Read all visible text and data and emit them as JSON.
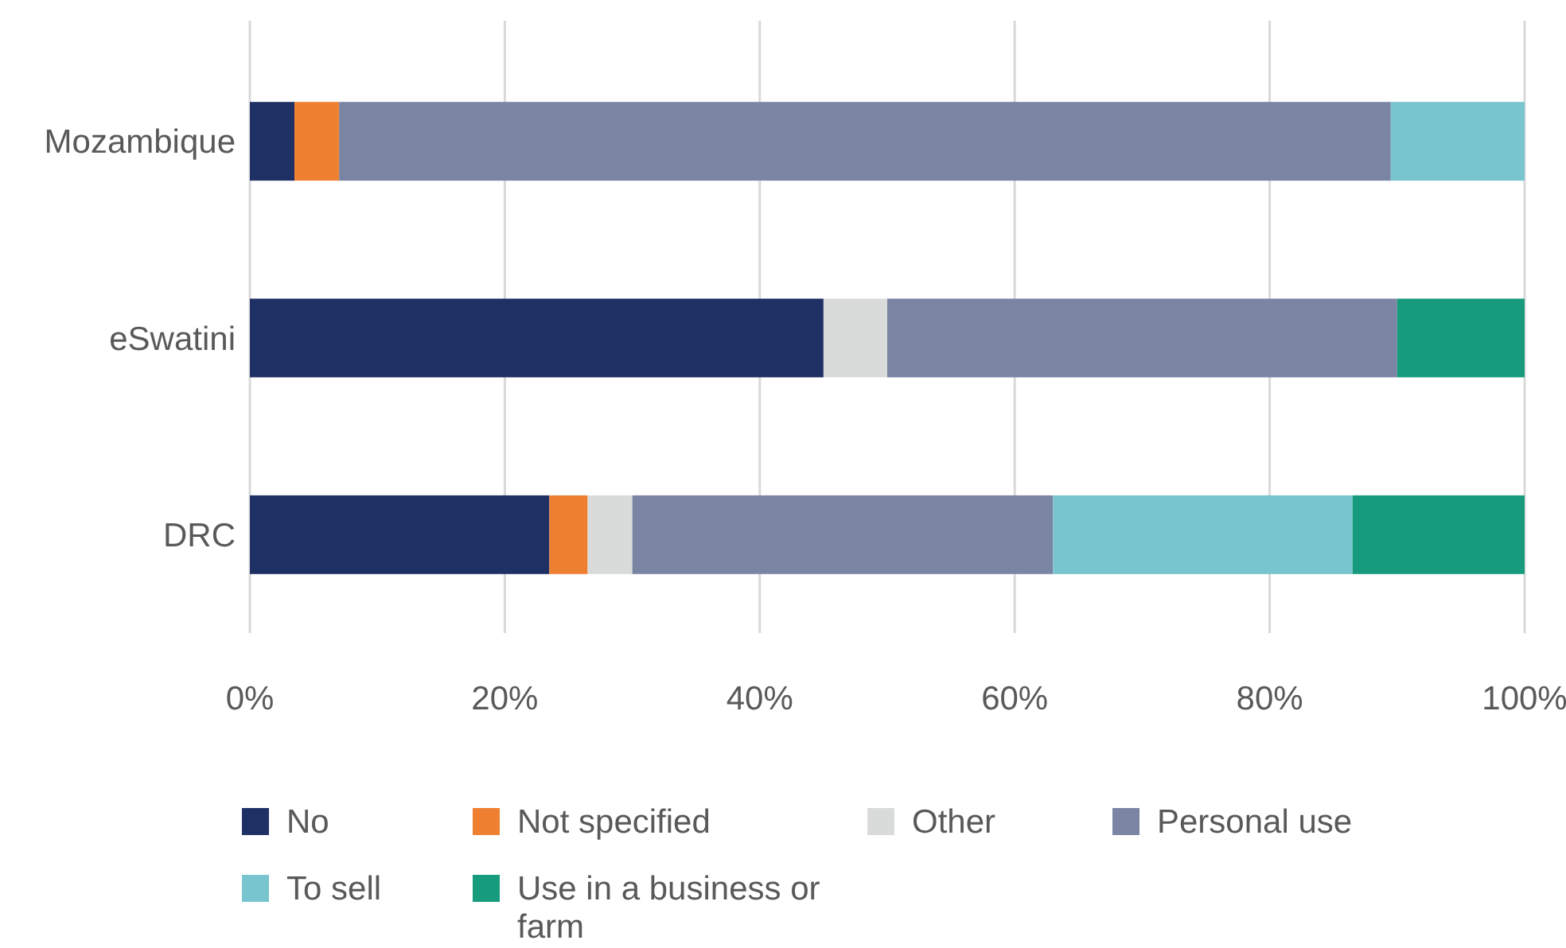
{
  "chart_data": {
    "type": "bar",
    "orientation": "horizontal",
    "stacked": true,
    "categories": [
      "Mozambique",
      "eSwatini",
      "DRC"
    ],
    "series": [
      {
        "name": "No",
        "color": "#1f3064",
        "values": [
          3.5,
          45,
          23.5
        ]
      },
      {
        "name": "Not specified",
        "color": "#f08031",
        "values": [
          3.5,
          0,
          3
        ]
      },
      {
        "name": "Other",
        "color": "#d9dbda",
        "values": [
          0,
          5,
          3.5
        ]
      },
      {
        "name": "Personal use",
        "color": "#7a84a3",
        "values": [
          82.5,
          40,
          33
        ]
      },
      {
        "name": "To sell",
        "color": "#78c4cf",
        "values": [
          10.5,
          0,
          23.5
        ]
      },
      {
        "name": "Use in a business or farm",
        "color": "#169c7c",
        "values": [
          0,
          10,
          13.5
        ]
      }
    ],
    "xlim": [
      0,
      100
    ],
    "xticks": [
      {
        "value": 0,
        "label": "0%"
      },
      {
        "value": 20,
        "label": "20%"
      },
      {
        "value": 40,
        "label": "40%"
      },
      {
        "value": 60,
        "label": "60%"
      },
      {
        "value": 80,
        "label": "80%"
      },
      {
        "value": 100,
        "label": "100%"
      }
    ],
    "grid": "x",
    "legend": "bottom"
  }
}
